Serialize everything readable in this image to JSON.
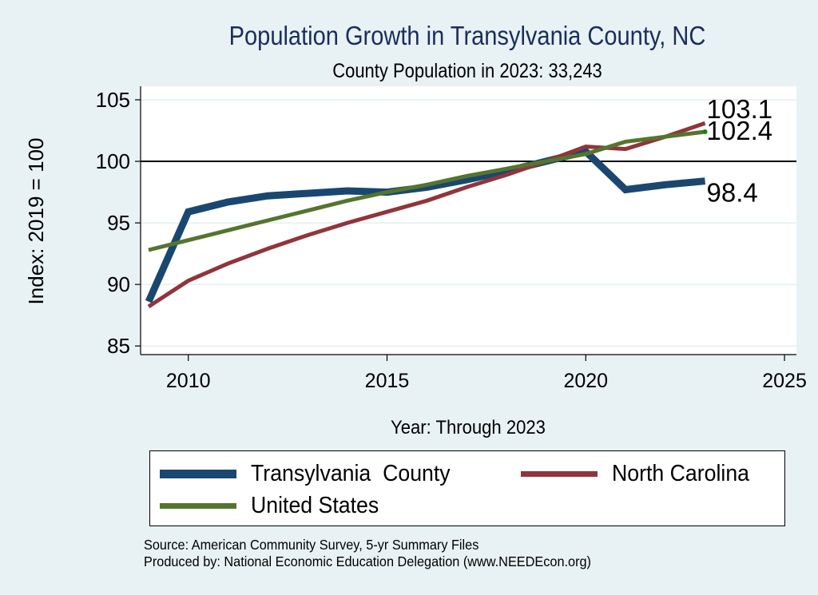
{
  "chart_data": {
    "type": "line",
    "title": "Population Growth in Transylvania County, NC",
    "subtitle": "County Population in 2023: 33,243",
    "xlabel": "Year: Through 2023",
    "ylabel": "Index: 2019 = 100",
    "xlim": [
      2008.8,
      2025.3
    ],
    "ylim": [
      84.3,
      106.1
    ],
    "xticks": [
      2010,
      2015,
      2020,
      2025
    ],
    "yticks": [
      85,
      90,
      95,
      100,
      105
    ],
    "reference_line": 100,
    "grid": true,
    "legend_position": "bottom",
    "x": [
      2009,
      2010,
      2011,
      2012,
      2013,
      2014,
      2015,
      2016,
      2017,
      2018,
      2019,
      2020,
      2021,
      2022,
      2023
    ],
    "series": [
      {
        "name": "Transylvania  County",
        "color": "#1a476f",
        "width": 9,
        "values": [
          88.6,
          95.9,
          96.7,
          97.2,
          97.4,
          97.6,
          97.5,
          97.9,
          98.5,
          99.2,
          100.0,
          100.8,
          97.7,
          98.1,
          98.4
        ],
        "end_label": "98.4"
      },
      {
        "name": "North Carolina",
        "color": "#90353b",
        "width": 5,
        "values": [
          88.2,
          90.3,
          91.7,
          92.9,
          94.0,
          95.0,
          95.9,
          96.8,
          97.9,
          98.9,
          100.0,
          101.2,
          101.0,
          102.0,
          103.1
        ],
        "end_label": "103.1"
      },
      {
        "name": "United States",
        "color": "#55752f",
        "width": 5,
        "values": [
          92.8,
          93.6,
          94.4,
          95.2,
          96.0,
          96.8,
          97.5,
          98.1,
          98.8,
          99.4,
          100.0,
          100.6,
          101.6,
          102.0,
          102.4
        ],
        "end_label": "102.4"
      }
    ]
  },
  "legend": {
    "items": [
      {
        "label": "Transylvania  County",
        "color": "#1a476f"
      },
      {
        "label": "North Carolina",
        "color": "#90353b"
      },
      {
        "label": "United States",
        "color": "#55752f"
      }
    ]
  },
  "notes": {
    "source": "Source: American Community Survey, 5-yr Summary Files",
    "produced": "Produced by: National Economic Education Delegation (www.NEEDEcon.org)"
  }
}
